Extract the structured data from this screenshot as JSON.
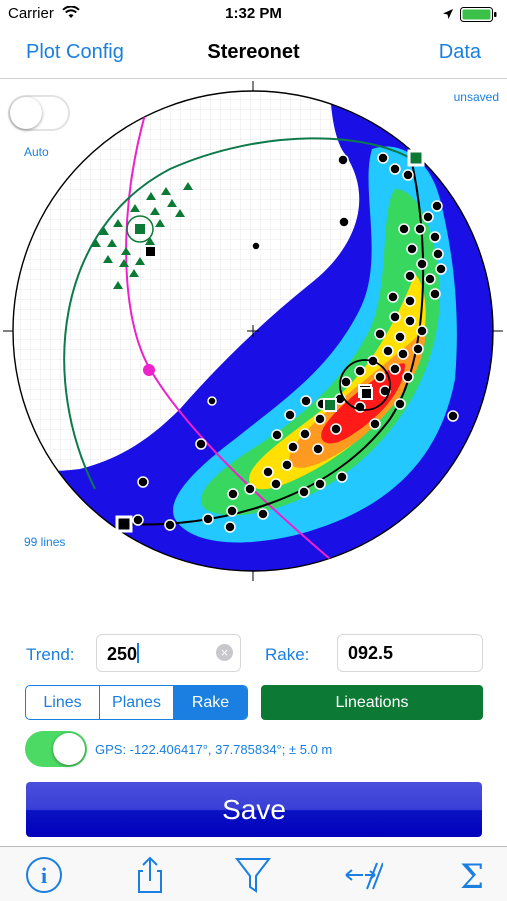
{
  "status": {
    "carrier": "Carrier",
    "time": "1:32 PM"
  },
  "nav": {
    "left": "Plot Config",
    "title": "Stereonet",
    "right": "Data"
  },
  "plot": {
    "saved_state": "unsaved",
    "auto_label": "Auto",
    "line_count": "99 lines"
  },
  "trend": {
    "label": "Trend:",
    "value": "250"
  },
  "rake": {
    "label": "Rake:",
    "value": "092.5"
  },
  "segments": [
    {
      "label": "Lines",
      "selected": false
    },
    {
      "label": "Planes",
      "selected": false
    },
    {
      "label": "Rake",
      "selected": true
    }
  ],
  "category_button": "Lineations",
  "gps": {
    "text": "GPS: -122.406417°,  37.785834°;  ± 5.0 m",
    "enabled": true
  },
  "auto_enabled": false,
  "save_label": "Save",
  "tabs": [
    {
      "icon": "info-icon"
    },
    {
      "icon": "share-icon"
    },
    {
      "icon": "filter-icon"
    },
    {
      "icon": "fault-slip-icon"
    },
    {
      "icon": "sigma-icon"
    }
  ],
  "colors": {
    "accent": "#1a7fe0",
    "category": "#0c7a34",
    "toggle_on": "#4cd964",
    "save": "#1a1fd0",
    "plane_magenta": "#ee22cc",
    "plane_green": "#0c7a4a"
  }
}
